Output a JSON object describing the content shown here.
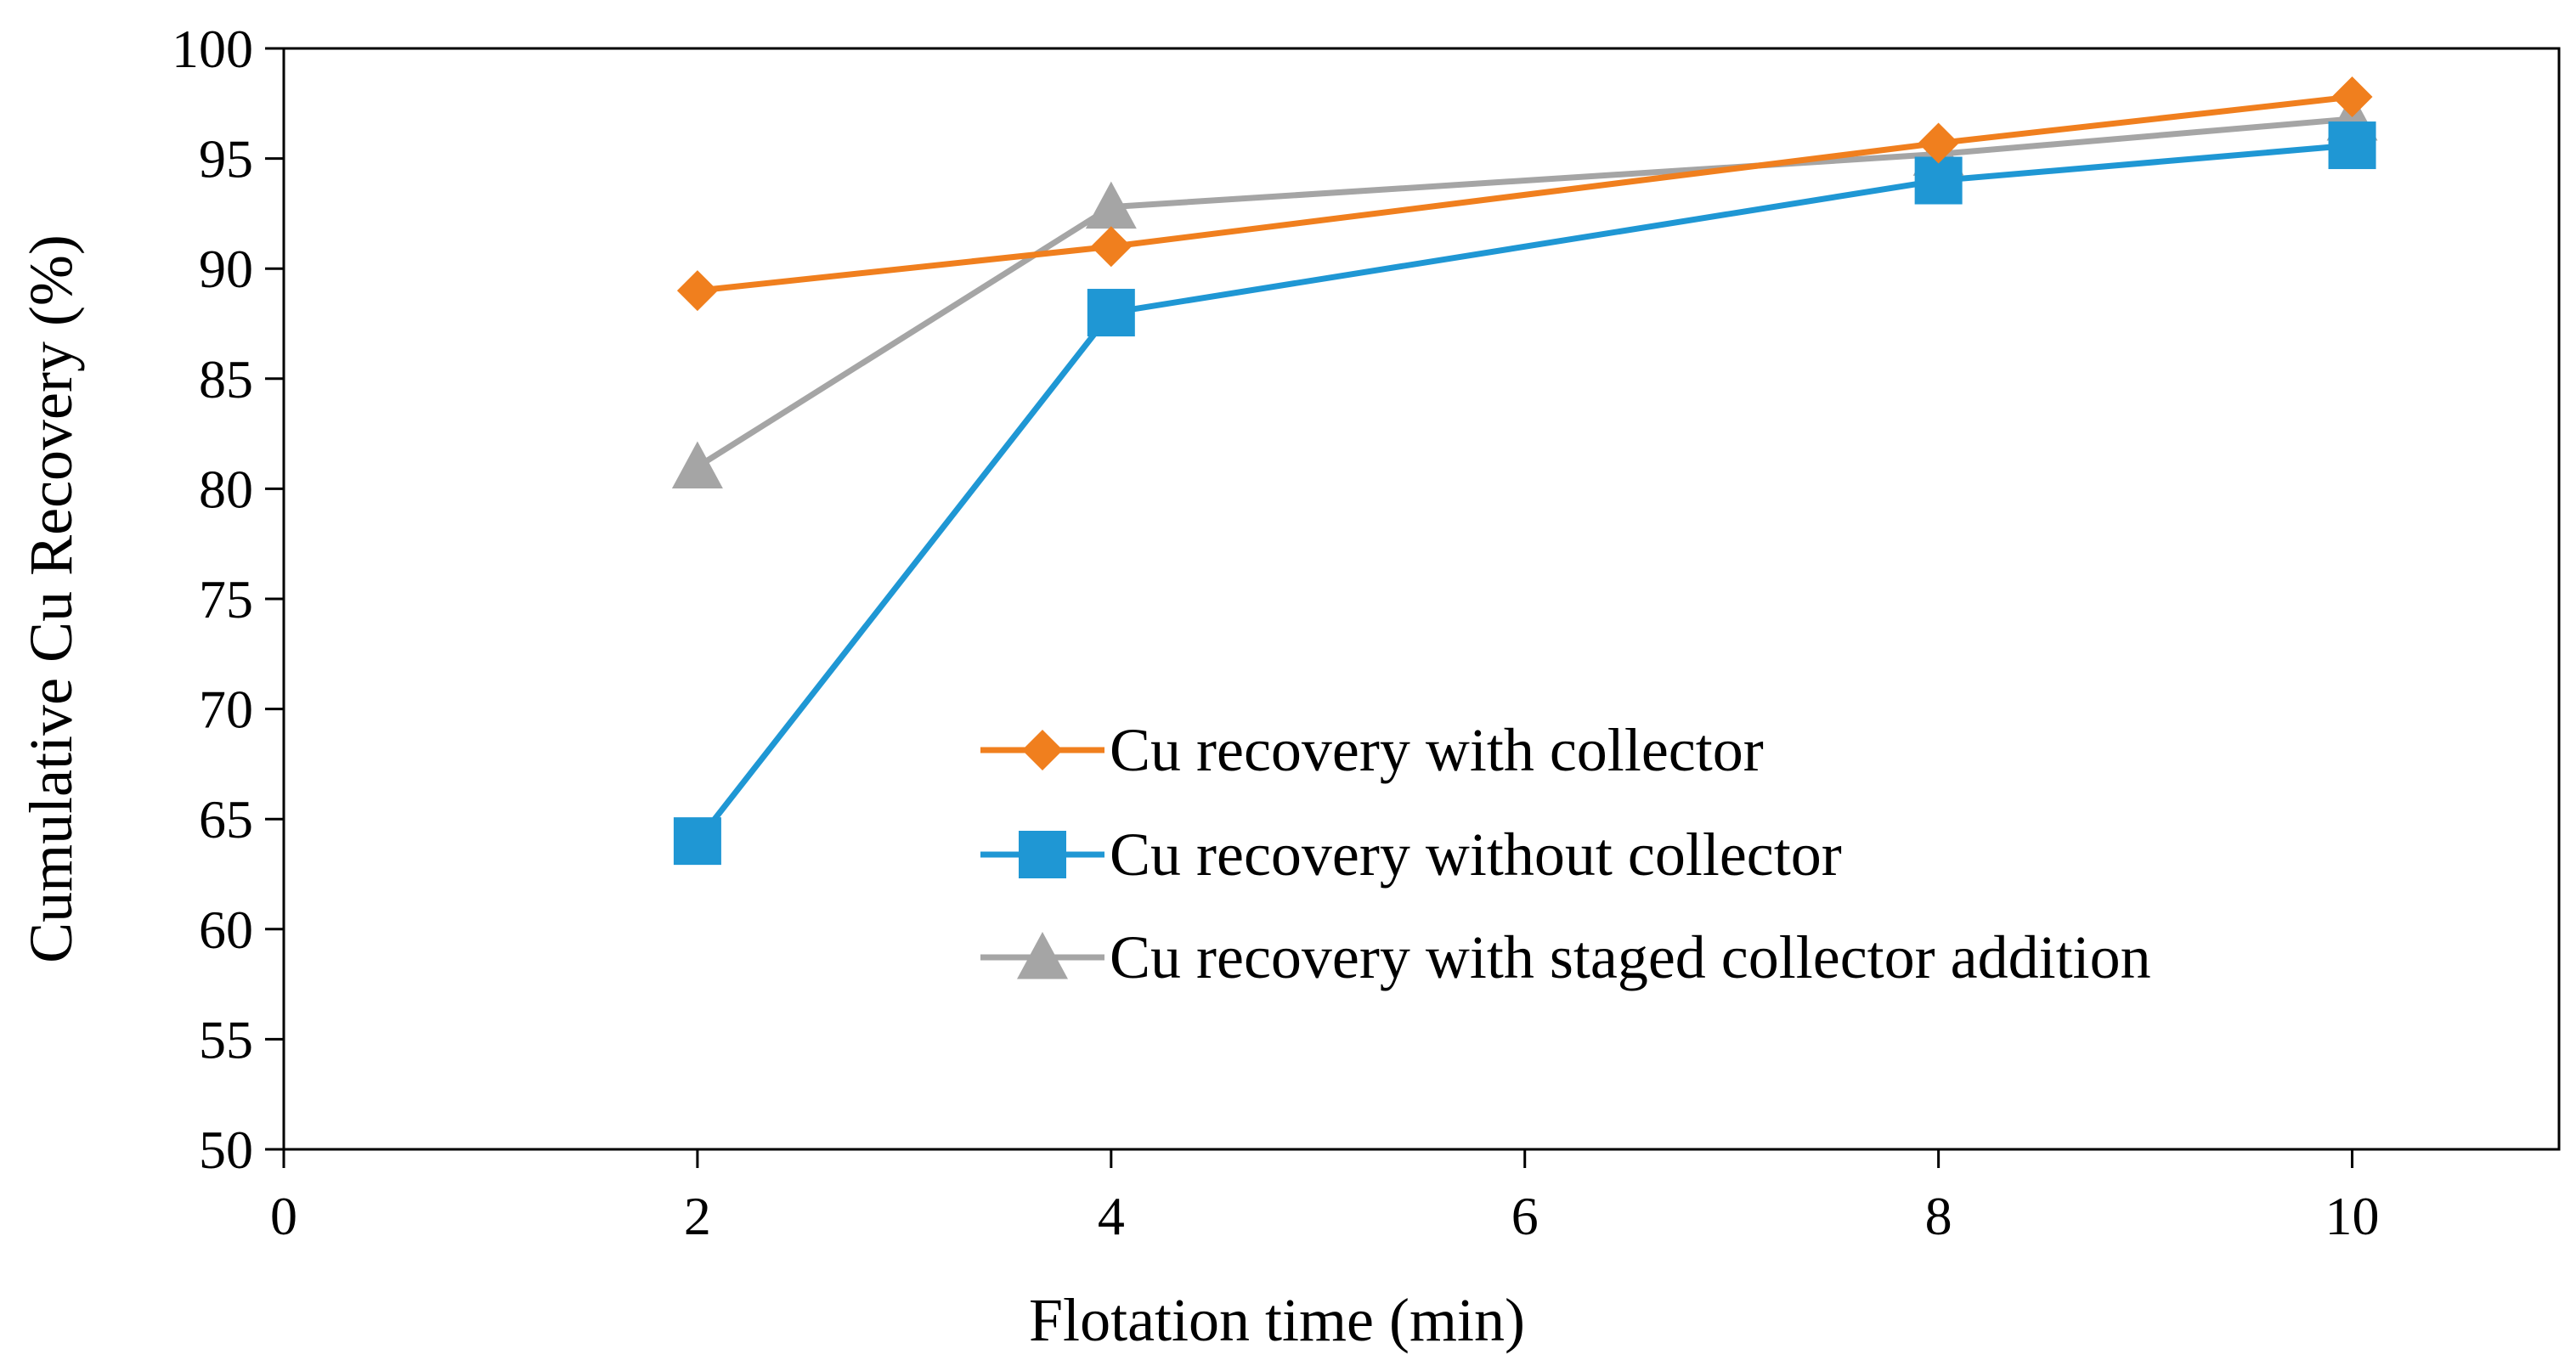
{
  "chart_data": {
    "type": "line",
    "title": "",
    "xlabel": "Flotation time (min)",
    "ylabel": "Cumulative Cu Recovery (%)",
    "xlim": [
      0,
      11
    ],
    "ylim": [
      50,
      100
    ],
    "xticks": [
      0,
      2,
      4,
      6,
      8,
      10
    ],
    "xtick_labels": [
      "0",
      "2",
      "4",
      "6",
      "8",
      "10"
    ],
    "yticks": [
      50,
      55,
      60,
      65,
      70,
      75,
      80,
      85,
      90,
      95,
      100
    ],
    "ytick_labels": [
      "50",
      "55",
      "60",
      "65",
      "70",
      "75",
      "80",
      "85",
      "90",
      "95",
      "100"
    ],
    "grid": false,
    "legend_position": "center-right",
    "x": [
      2,
      4,
      8,
      10
    ],
    "series": [
      {
        "name": "Cu recovery with collector",
        "values": [
          89,
          91,
          95.7,
          97.8
        ],
        "color": "#F07F1E",
        "marker": "diamond"
      },
      {
        "name": "Cu recovery without collector",
        "values": [
          64,
          88,
          94,
          95.6
        ],
        "color": "#1F97D4",
        "marker": "square"
      },
      {
        "name": "Cu recovery with staged collector addition",
        "values": [
          81,
          92.8,
          95.2,
          96.8
        ],
        "color": "#A5A5A5",
        "marker": "triangle"
      }
    ]
  }
}
